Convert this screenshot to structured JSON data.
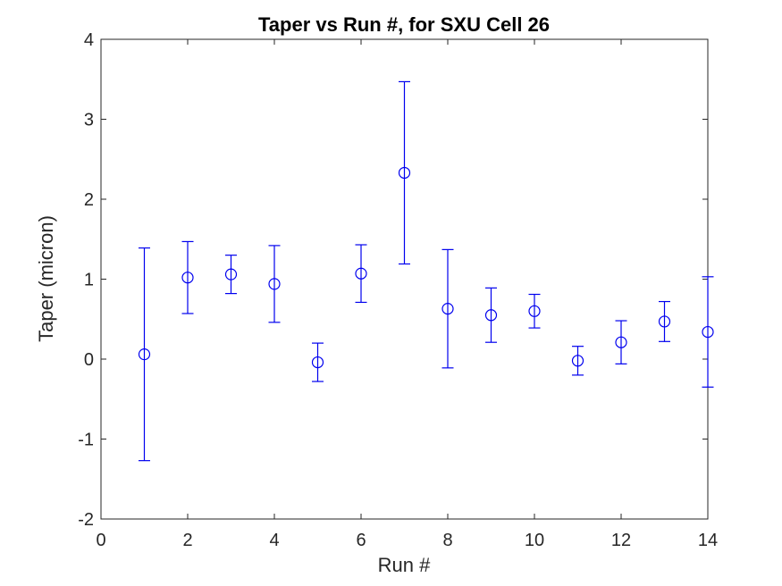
{
  "figure": {
    "background": "#FFFFFF"
  },
  "colors": {
    "series": "#0000EE",
    "axis": "#262626",
    "title": "#000000",
    "tick_label": "#262626"
  },
  "chart_data": {
    "type": "scatter",
    "subtype": "errorbar",
    "title": "Taper vs Run #, for SXU Cell 26",
    "xlabel": "Run #",
    "ylabel": "Taper (micron)",
    "xlim": [
      0,
      14
    ],
    "ylim": [
      -2,
      4
    ],
    "xticks": [
      0,
      2,
      4,
      6,
      8,
      10,
      12,
      14
    ],
    "yticks": [
      -2,
      -1,
      0,
      1,
      2,
      3,
      4
    ],
    "grid": false,
    "box": true,
    "legend": null,
    "series": [
      {
        "name": "Taper",
        "marker": "open-circle",
        "color": "#0000EE",
        "x": [
          1,
          2,
          3,
          4,
          5,
          6,
          7,
          8,
          9,
          10,
          11,
          12,
          13,
          14
        ],
        "y": [
          0.06,
          1.02,
          1.06,
          0.94,
          -0.04,
          1.07,
          2.33,
          0.63,
          0.55,
          0.6,
          -0.02,
          0.21,
          0.47,
          0.34
        ],
        "yerr": [
          1.33,
          0.45,
          0.24,
          0.48,
          0.24,
          0.36,
          1.14,
          0.74,
          0.34,
          0.21,
          0.18,
          0.27,
          0.25,
          0.69
        ]
      }
    ]
  }
}
